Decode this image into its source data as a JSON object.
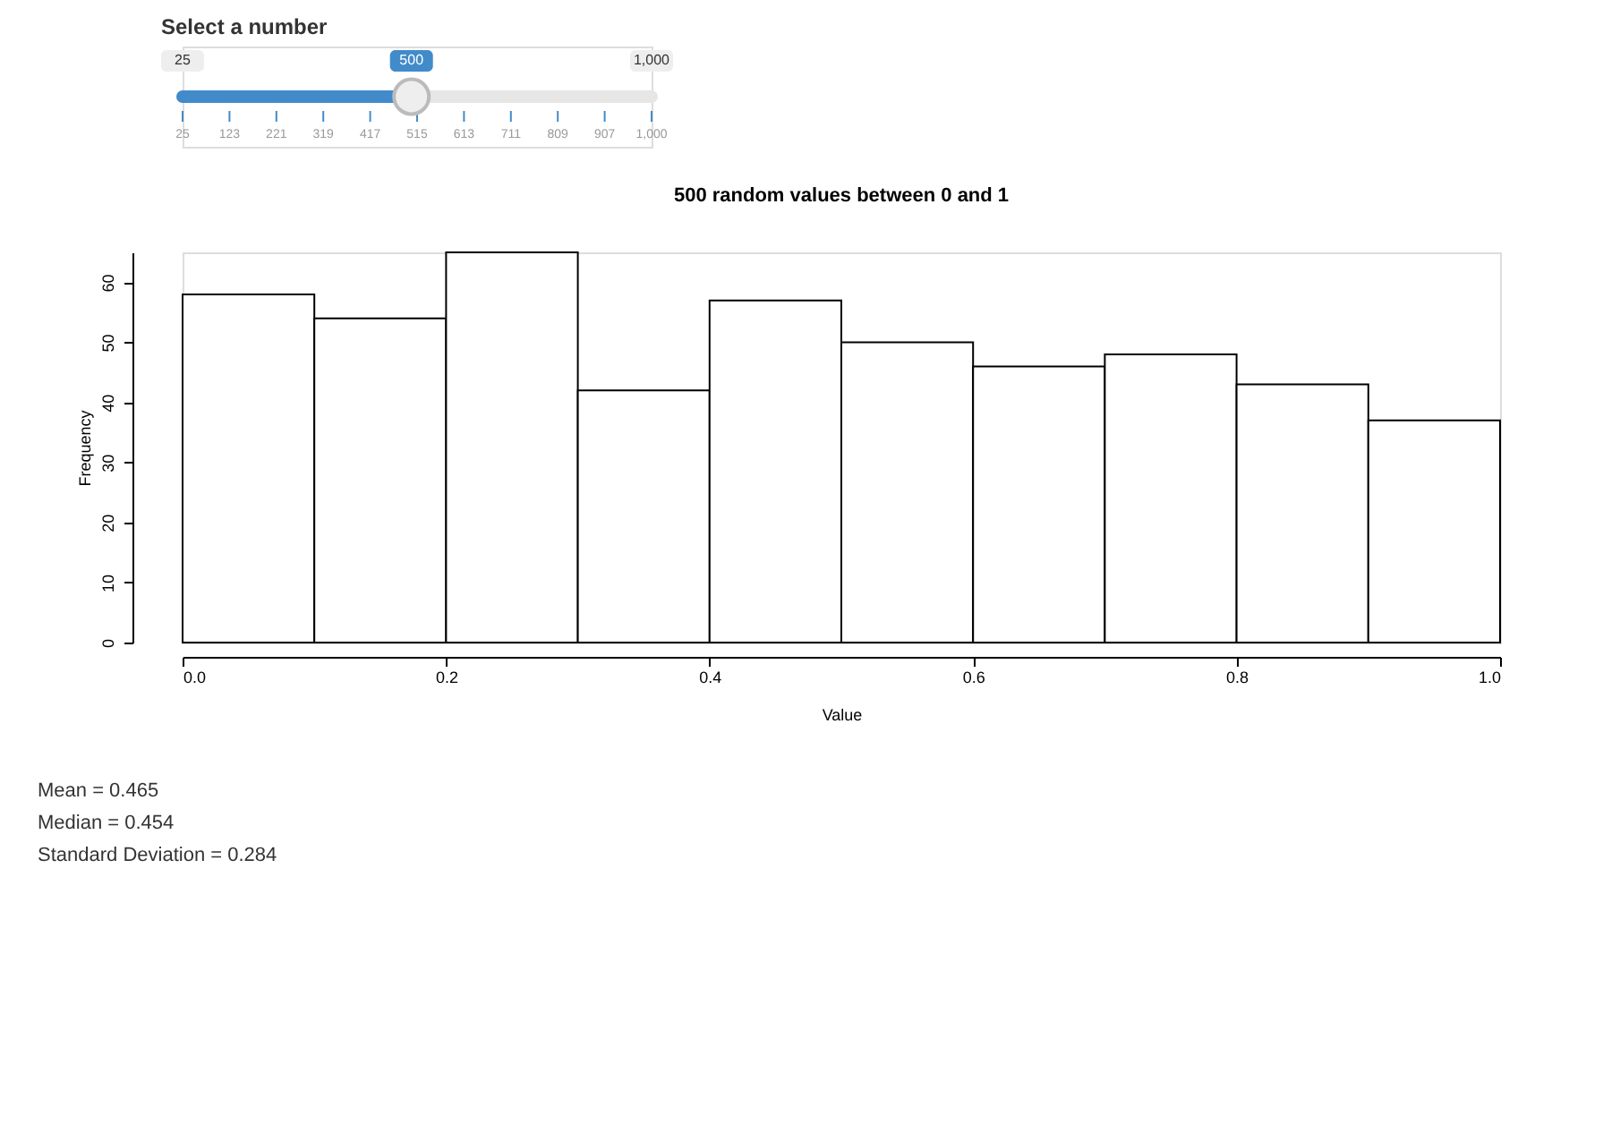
{
  "chart_data": [
    {
      "type": "other",
      "title": "Select a number",
      "color": "#428bca",
      "annotations": [
        "25",
        "500",
        "1,000",
        "25",
        "123",
        "221",
        "319",
        "417",
        "515",
        "613",
        "711",
        "809",
        "907",
        "1,000"
      ]
    },
    {
      "type": "histogram",
      "title": "500 random values between 0   and 1",
      "xlabel": "Value",
      "ylabel": "Frequency",
      "bins": [
        0.0,
        0.1,
        0.2,
        0.3,
        0.4,
        0.5,
        0.6,
        0.7,
        0.8,
        0.9,
        1.0
      ],
      "values": [
        58,
        54,
        65,
        42,
        57,
        50,
        46,
        48,
        43,
        37
      ],
      "color": "#ffffff",
      "xlim": [
        0,
        1
      ],
      "xticks": [
        {
          "value": 0,
          "label": "0.0"
        },
        {
          "value": 0.2,
          "label": "0.2"
        },
        {
          "value": 0.4,
          "label": "0.4"
        },
        {
          "value": 0.6,
          "label": "0.6"
        },
        {
          "value": 0.8,
          "label": "0.8"
        },
        {
          "value": 1,
          "label": "1.0"
        }
      ],
      "ylim": [
        0,
        65
      ],
      "yticks": [
        0,
        10,
        20,
        30,
        40,
        50,
        60
      ],
      "grid": false,
      "annotations": [
        "Mean = 0.465",
        "Median = 0.454",
        "Standard Deviation = 0.284"
      ]
    }
  ]
}
